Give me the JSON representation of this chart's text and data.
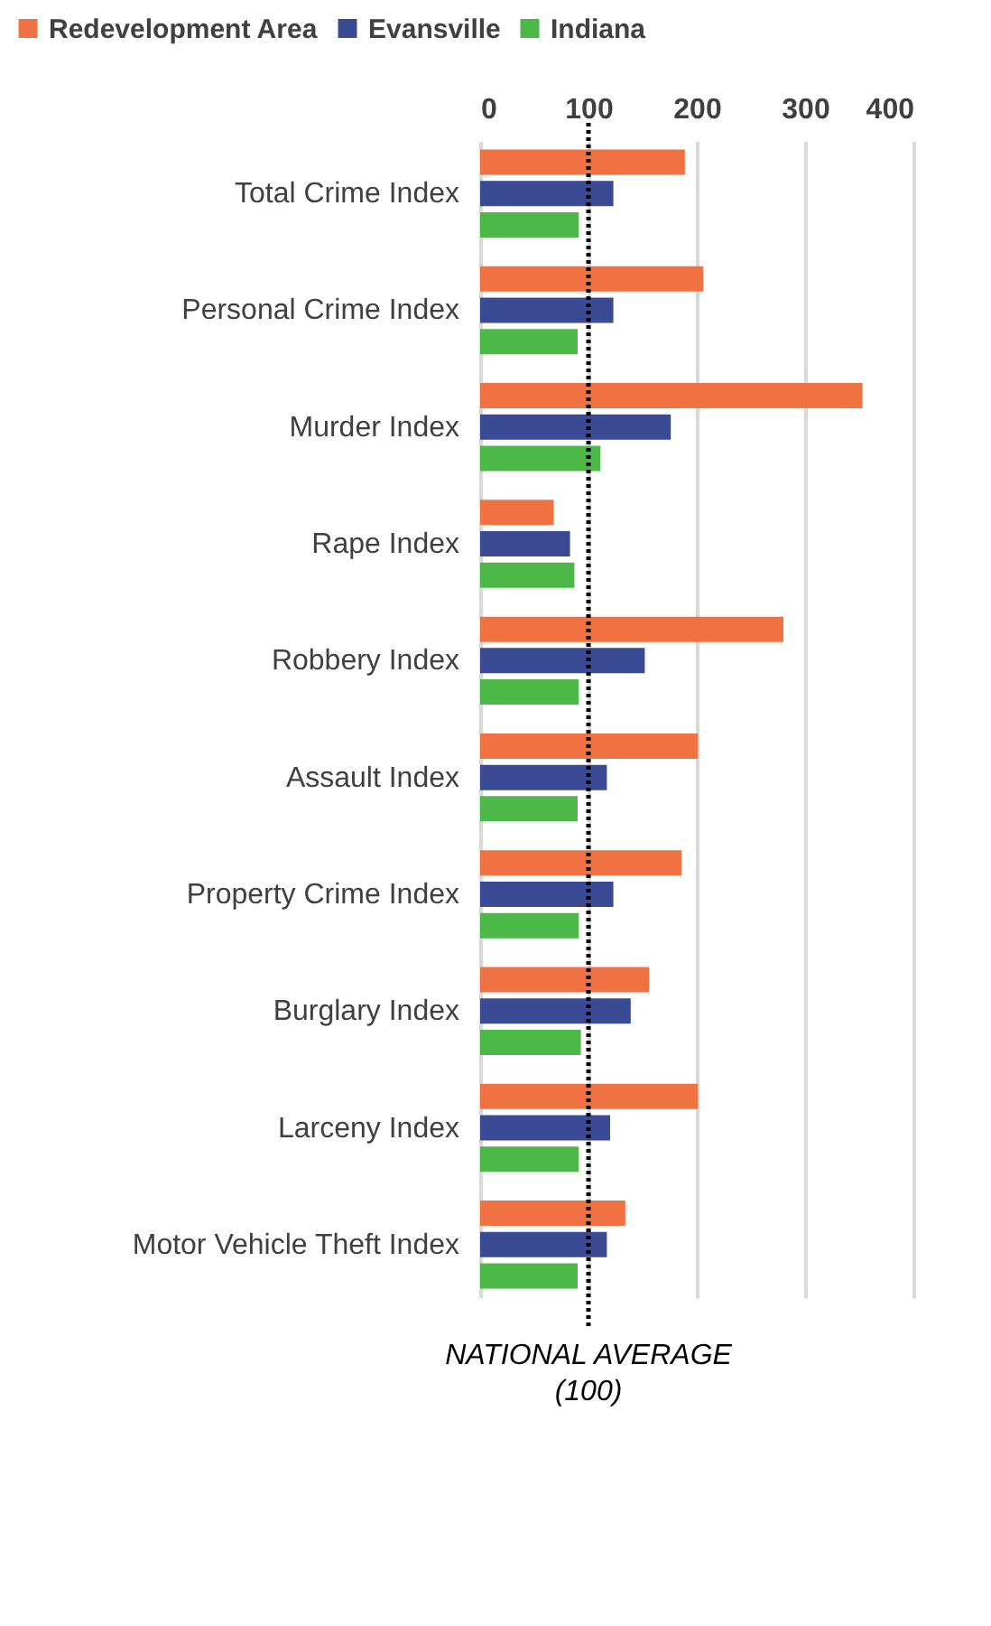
{
  "chart_data": {
    "type": "bar",
    "orientation": "horizontal",
    "categories": [
      "Total Crime Index",
      "Personal Crime Index",
      "Murder Index",
      "Rape Index",
      "Robbery Index",
      "Assault Index",
      "Property Crime Index",
      "Burglary Index",
      "Larceny Index",
      "Motor Vehicle Theft Index"
    ],
    "series": [
      {
        "name": "Redevelopment Area",
        "color": "#f07142",
        "values": [
          189,
          206,
          353,
          68,
          280,
          201,
          186,
          156,
          201,
          134
        ]
      },
      {
        "name": "Evansville",
        "color": "#3b4a94",
        "values": [
          123,
          123,
          176,
          83,
          152,
          117,
          123,
          139,
          120,
          117
        ]
      },
      {
        "name": "Indiana",
        "color": "#4cb848",
        "values": [
          91,
          90,
          111,
          87,
          91,
          90,
          91,
          93,
          91,
          90
        ]
      }
    ],
    "xlim": [
      0,
      400
    ],
    "xticks": [
      0,
      100,
      200,
      300,
      400
    ],
    "grid": "x",
    "legend": "top",
    "ref_lines": [
      {
        "axis": "x",
        "value": 100,
        "label": "NATIONAL AVERAGE (100)",
        "line_style": "dotted",
        "color": "#000000"
      }
    ]
  }
}
